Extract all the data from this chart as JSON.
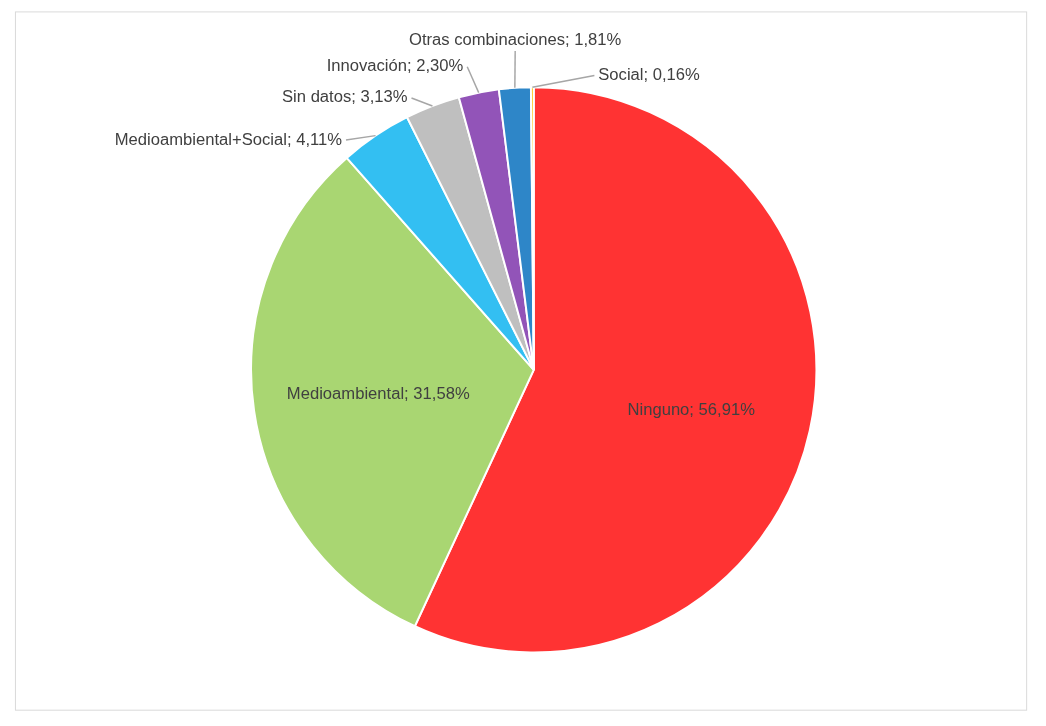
{
  "chart_data": {
    "type": "pie",
    "categories": [
      "Ninguno",
      "Medioambiental",
      "Medioambiental+Social",
      "Sin datos",
      "Innovación",
      "Otras combinaciones",
      "Social"
    ],
    "values": [
      56.91,
      31.58,
      4.11,
      3.13,
      2.3,
      1.81,
      0.16
    ],
    "value_labels": [
      "56,91%",
      "31,58%",
      "4,11%",
      "3,13%",
      "2,30%",
      "1,81%",
      "0,16%"
    ],
    "colors": [
      "#ff3333",
      "#a9d672",
      "#33bff2",
      "#bfbfbf",
      "#9254b8",
      "#2e86c8",
      "#ffc000"
    ]
  }
}
